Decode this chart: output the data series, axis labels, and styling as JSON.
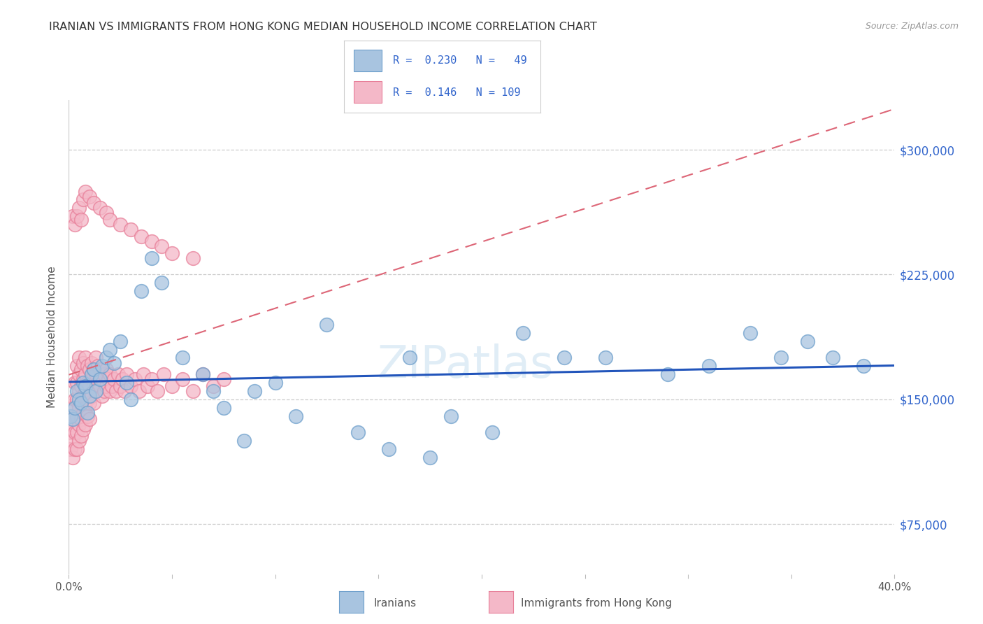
{
  "title": "IRANIAN VS IMMIGRANTS FROM HONG KONG MEDIAN HOUSEHOLD INCOME CORRELATION CHART",
  "source": "Source: ZipAtlas.com",
  "ylabel": "Median Household Income",
  "yticks": [
    75000,
    150000,
    225000,
    300000
  ],
  "ytick_labels": [
    "$75,000",
    "$150,000",
    "$225,000",
    "$300,000"
  ],
  "xlim": [
    0.0,
    0.4
  ],
  "ylim": [
    45000,
    330000
  ],
  "legend_r_iranian": "0.230",
  "legend_n_iranian": "49",
  "legend_r_hk": "0.146",
  "legend_n_hk": "109",
  "iranian_color": "#a8c4e0",
  "iranian_edge_color": "#6fa0cc",
  "hk_color": "#f4b8c8",
  "hk_edge_color": "#e8809a",
  "iranian_line_color": "#2255bb",
  "hk_line_color": "#dd6677",
  "background_color": "#ffffff",
  "watermark": "ZIPatlas",
  "iranian_scatter_x": [
    0.001,
    0.002,
    0.003,
    0.004,
    0.005,
    0.006,
    0.007,
    0.008,
    0.009,
    0.01,
    0.011,
    0.012,
    0.013,
    0.015,
    0.016,
    0.018,
    0.02,
    0.022,
    0.025,
    0.028,
    0.03,
    0.035,
    0.04,
    0.045,
    0.055,
    0.065,
    0.07,
    0.075,
    0.085,
    0.09,
    0.1,
    0.11,
    0.125,
    0.14,
    0.155,
    0.165,
    0.175,
    0.185,
    0.205,
    0.22,
    0.24,
    0.26,
    0.29,
    0.31,
    0.33,
    0.345,
    0.358,
    0.37,
    0.385
  ],
  "iranian_scatter_y": [
    140000,
    138000,
    145000,
    155000,
    150000,
    148000,
    160000,
    158000,
    142000,
    152000,
    165000,
    168000,
    155000,
    162000,
    170000,
    175000,
    180000,
    172000,
    185000,
    160000,
    150000,
    215000,
    235000,
    220000,
    175000,
    165000,
    155000,
    145000,
    125000,
    155000,
    160000,
    140000,
    195000,
    130000,
    120000,
    175000,
    115000,
    140000,
    130000,
    190000,
    175000,
    175000,
    165000,
    170000,
    190000,
    175000,
    185000,
    175000,
    170000
  ],
  "hk_scatter_x": [
    0.001,
    0.001,
    0.002,
    0.002,
    0.002,
    0.002,
    0.003,
    0.003,
    0.003,
    0.003,
    0.003,
    0.004,
    0.004,
    0.004,
    0.004,
    0.004,
    0.004,
    0.005,
    0.005,
    0.005,
    0.005,
    0.005,
    0.005,
    0.006,
    0.006,
    0.006,
    0.006,
    0.006,
    0.007,
    0.007,
    0.007,
    0.007,
    0.007,
    0.008,
    0.008,
    0.008,
    0.008,
    0.008,
    0.009,
    0.009,
    0.009,
    0.009,
    0.01,
    0.01,
    0.01,
    0.01,
    0.011,
    0.011,
    0.011,
    0.012,
    0.012,
    0.012,
    0.013,
    0.013,
    0.013,
    0.014,
    0.014,
    0.015,
    0.015,
    0.016,
    0.016,
    0.017,
    0.017,
    0.018,
    0.018,
    0.019,
    0.02,
    0.02,
    0.021,
    0.022,
    0.023,
    0.024,
    0.025,
    0.026,
    0.027,
    0.028,
    0.03,
    0.032,
    0.034,
    0.036,
    0.038,
    0.04,
    0.043,
    0.046,
    0.05,
    0.055,
    0.06,
    0.065,
    0.07,
    0.075,
    0.002,
    0.003,
    0.004,
    0.005,
    0.006,
    0.007,
    0.008,
    0.01,
    0.012,
    0.015,
    0.018,
    0.02,
    0.025,
    0.03,
    0.035,
    0.04,
    0.045,
    0.05,
    0.06
  ],
  "hk_scatter_y": [
    130000,
    120000,
    145000,
    135000,
    125000,
    115000,
    160000,
    150000,
    140000,
    130000,
    120000,
    170000,
    160000,
    150000,
    140000,
    130000,
    120000,
    175000,
    165000,
    155000,
    145000,
    135000,
    125000,
    168000,
    158000,
    148000,
    138000,
    128000,
    172000,
    162000,
    152000,
    142000,
    132000,
    175000,
    165000,
    155000,
    145000,
    135000,
    170000,
    160000,
    150000,
    140000,
    168000,
    158000,
    148000,
    138000,
    172000,
    162000,
    152000,
    168000,
    158000,
    148000,
    175000,
    165000,
    155000,
    170000,
    160000,
    168000,
    158000,
    162000,
    152000,
    165000,
    155000,
    168000,
    158000,
    162000,
    155000,
    165000,
    158000,
    162000,
    155000,
    165000,
    158000,
    162000,
    155000,
    165000,
    158000,
    162000,
    155000,
    165000,
    158000,
    162000,
    155000,
    165000,
    158000,
    162000,
    155000,
    165000,
    158000,
    162000,
    260000,
    255000,
    260000,
    265000,
    258000,
    270000,
    275000,
    272000,
    268000,
    265000,
    262000,
    258000,
    255000,
    252000,
    248000,
    245000,
    242000,
    238000,
    235000
  ]
}
